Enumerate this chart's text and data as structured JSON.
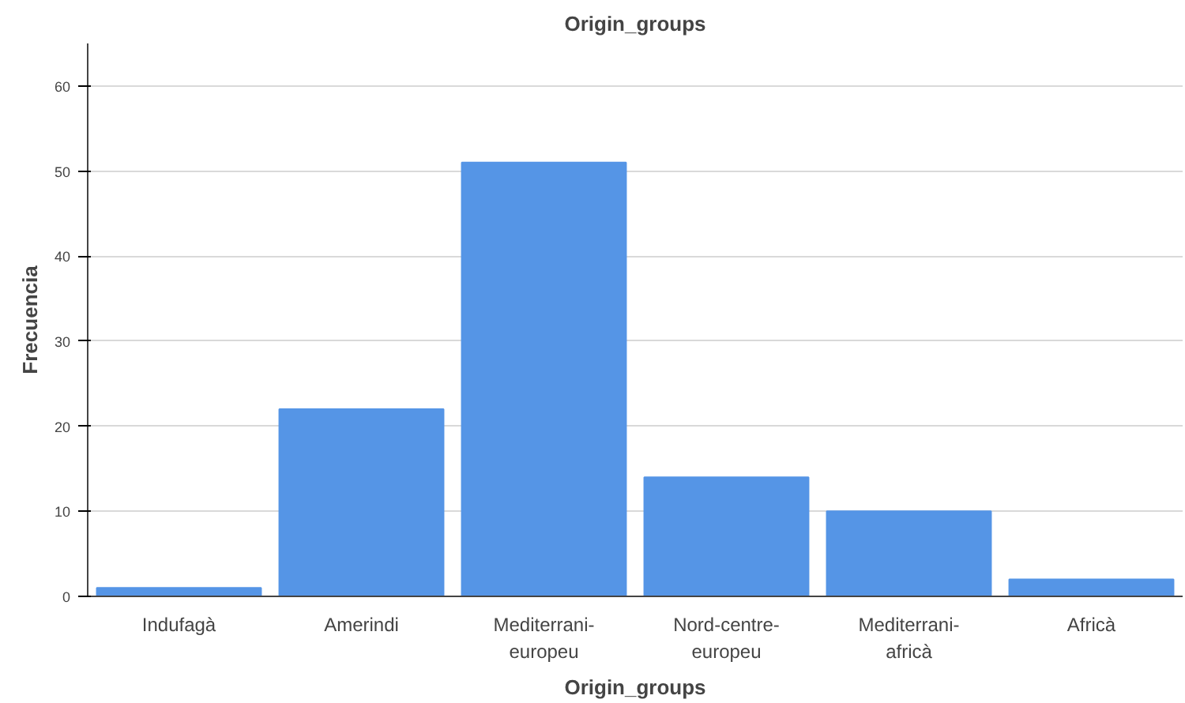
{
  "chart_data": {
    "type": "bar",
    "title": "Origin_groups",
    "xlabel": "Origin_groups",
    "ylabel": "Frecuencia",
    "categories": [
      "Indufagà",
      "Amerindi",
      "Mediterrani-europeu",
      "Nord-centre-europeu",
      "Mediterrani-africà",
      "Africà"
    ],
    "values": [
      1,
      22,
      51,
      14,
      10,
      2
    ],
    "color": "#5595e6",
    "ylim": [
      0,
      65
    ],
    "yticks": [
      0,
      10,
      20,
      30,
      40,
      50,
      60
    ],
    "grid": "y"
  }
}
